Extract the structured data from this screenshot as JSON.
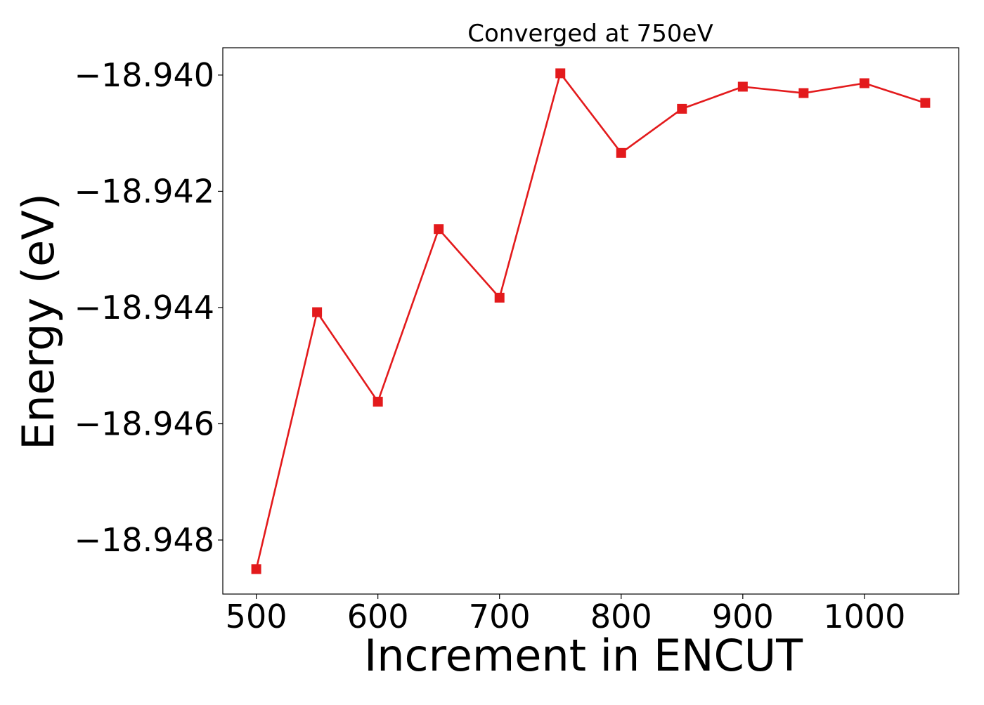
{
  "chart_data": {
    "type": "line",
    "title": "Converged at 750eV",
    "xlabel": "Increment in ENCUT",
    "ylabel": "Energy (eV)",
    "x": [
      500,
      550,
      600,
      650,
      700,
      750,
      800,
      850,
      900,
      950,
      1000,
      1050
    ],
    "series": [
      {
        "values": [
          -18.9485,
          -18.94408,
          -18.94562,
          -18.94265,
          -18.94383,
          -18.93997,
          -18.94134,
          -18.94058,
          -18.9402,
          -18.94031,
          -18.94014,
          -18.94048
        ],
        "color": "#e31a1c",
        "marker": "square"
      }
    ],
    "xlim": [
      472.5,
      1077.5
    ],
    "ylim": [
      -18.94893,
      -18.93953
    ],
    "xticks": [
      500,
      600,
      700,
      800,
      900,
      1000
    ],
    "xtick_labels": [
      "500",
      "600",
      "700",
      "800",
      "900",
      "1000"
    ],
    "yticks": [
      -18.948,
      -18.946,
      -18.944,
      -18.942,
      -18.94
    ],
    "ytick_labels": [
      "−18.948",
      "−18.946",
      "−18.944",
      "−18.942",
      "−18.940"
    ],
    "grid": false,
    "legend": "none"
  }
}
